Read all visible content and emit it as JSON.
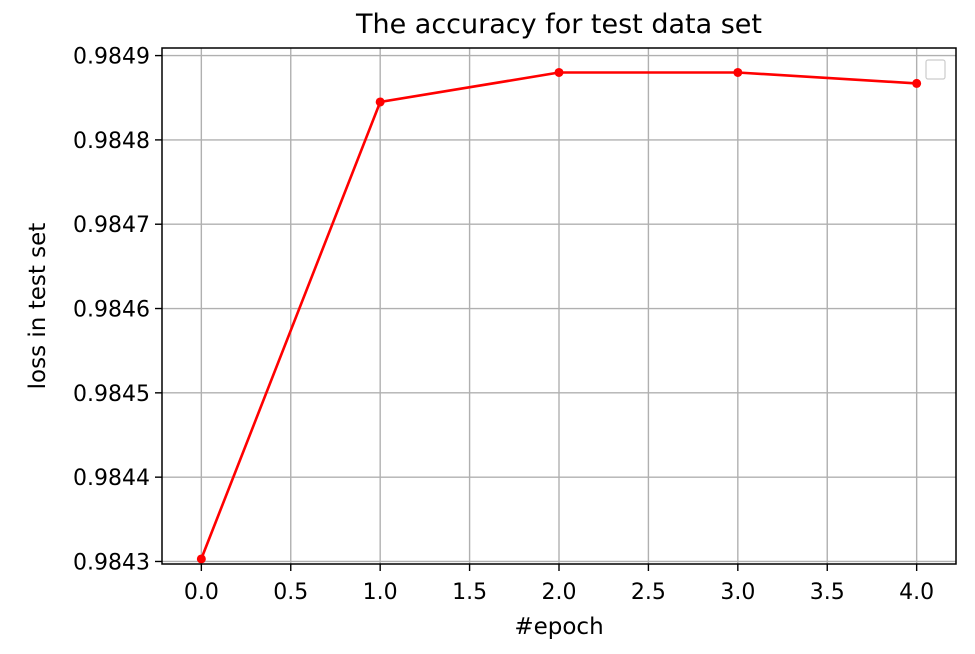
{
  "chart_data": {
    "type": "line",
    "title": "The accuracy for test data set",
    "xlabel": "#epoch",
    "ylabel": "loss in test set",
    "xlim": [
      -0.22,
      4.22
    ],
    "ylim": [
      0.984297,
      0.984909
    ],
    "xticks": [
      0.0,
      0.5,
      1.0,
      1.5,
      2.0,
      2.5,
      3.0,
      3.5,
      4.0
    ],
    "xtick_labels": [
      "0.0",
      "0.5",
      "1.0",
      "1.5",
      "2.0",
      "2.5",
      "3.0",
      "3.5",
      "4.0"
    ],
    "yticks": [
      0.9843,
      0.9844,
      0.9845,
      0.9846,
      0.9847,
      0.9848,
      0.9849
    ],
    "ytick_labels": [
      "0.9843",
      "0.9844",
      "0.9845",
      "0.9846",
      "0.9847",
      "0.9848",
      "0.9849"
    ],
    "grid": true,
    "legend": "top-right (empty)",
    "series": [
      {
        "x": [
          0,
          1,
          2,
          3,
          4
        ],
        "y": [
          0.984303,
          0.984845,
          0.98488,
          0.98488,
          0.984867
        ],
        "color": "#ff0000",
        "marker": "dot"
      }
    ]
  }
}
